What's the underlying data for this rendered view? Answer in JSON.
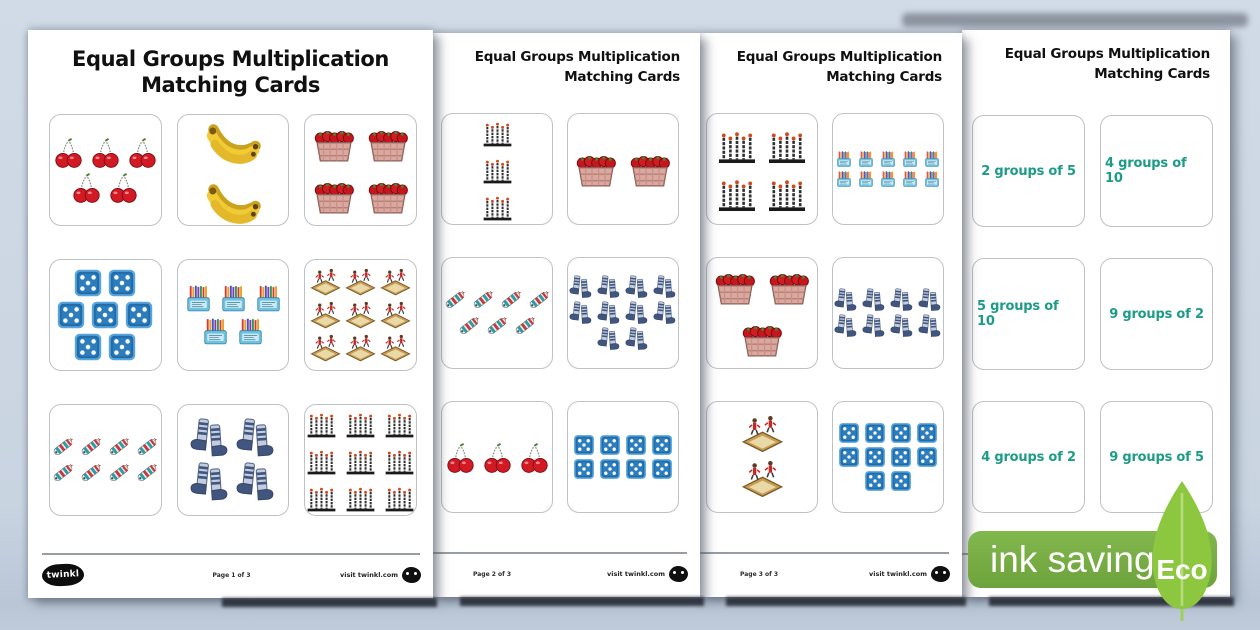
{
  "background_color": "#ccd6e3",
  "card_text_color": "#1d9b86",
  "badge": {
    "label": "ink saving",
    "eco_label": "Eco",
    "pill_color": "#76b043",
    "leaf_color": "#8dc63f"
  },
  "pages": [
    {
      "name": "page-1",
      "title": {
        "line1": "Equal Groups Multiplication",
        "line2": "Matching Cards"
      },
      "footer": {
        "brand": "twinkl",
        "page_label": "Page 1 of 3",
        "site_label": "visit twinkl.com"
      },
      "columns": 3,
      "cards": [
        {
          "type": "cherries",
          "icon": "cherry-pair-icon",
          "groups": 5,
          "rows": [
            3,
            2
          ]
        },
        {
          "type": "bananas",
          "icon": "banana-bunch-icon",
          "groups": 2,
          "rows": [
            1,
            1
          ]
        },
        {
          "type": "strawberries",
          "icon": "strawberry-basket-icon",
          "groups": 4,
          "rows": [
            2,
            2
          ]
        },
        {
          "type": "dice",
          "icon": "die-icon",
          "groups": 7,
          "rows": [
            2,
            3,
            2
          ]
        },
        {
          "type": "pencils",
          "icon": "pencil-pack-icon",
          "groups": 5,
          "rows": [
            3,
            2
          ]
        },
        {
          "type": "sandpit",
          "icon": "sandpit-icon",
          "groups": 9,
          "rows": [
            3,
            3,
            3
          ]
        },
        {
          "type": "crackers",
          "icon": "cracker-icon",
          "groups": 8,
          "rows": [
            4,
            4
          ]
        },
        {
          "type": "socks",
          "icon": "sock-pair-icon",
          "groups": 4,
          "rows": [
            2,
            2
          ]
        },
        {
          "type": "candles",
          "icon": "candle-group-icon",
          "groups": 9,
          "rows": [
            3,
            3,
            3
          ]
        }
      ]
    },
    {
      "name": "page-2",
      "title": {
        "line1": "Equal Groups Multiplication",
        "line2": "Matching Cards"
      },
      "footer": {
        "page_label": "Page 2 of 3",
        "site_label": "visit twinkl.com"
      },
      "columns": 2,
      "cards": [
        {
          "type": "candles",
          "icon": "candle-group-icon",
          "groups": 3,
          "rows": [
            1,
            1,
            1
          ]
        },
        {
          "type": "strawberries",
          "icon": "strawberry-basket-icon",
          "groups": 2,
          "rows": [
            2
          ]
        },
        {
          "type": "crackers",
          "icon": "cracker-icon",
          "groups": 7,
          "rows": [
            4,
            3
          ]
        },
        {
          "type": "socks",
          "icon": "sock-pair-icon",
          "groups": 10,
          "rows": [
            4,
            4,
            2
          ]
        },
        {
          "type": "cherries",
          "icon": "cherry-pair-icon",
          "groups": 3,
          "rows": [
            3
          ]
        },
        {
          "type": "dice",
          "icon": "die-icon",
          "groups": 8,
          "rows": [
            4,
            4
          ]
        }
      ]
    },
    {
      "name": "page-3",
      "title": {
        "line1": "Equal Groups Multiplication",
        "line2": "Matching Cards"
      },
      "footer": {
        "page_label": "Page 3 of 3",
        "site_label": "visit twinkl.com"
      },
      "columns": 2,
      "cards": [
        {
          "type": "candles",
          "icon": "candle-group-icon",
          "groups": 4,
          "rows": [
            2,
            2
          ]
        },
        {
          "type": "pencils",
          "icon": "pencil-pack-icon",
          "groups": 10,
          "rows": [
            5,
            5
          ]
        },
        {
          "type": "strawberries",
          "icon": "strawberry-basket-icon",
          "groups": 3,
          "rows": [
            2,
            1
          ]
        },
        {
          "type": "socks",
          "icon": "sock-pair-icon",
          "groups": 8,
          "rows": [
            4,
            4
          ]
        },
        {
          "type": "sandpit",
          "icon": "sandpit-icon",
          "groups": 2,
          "rows": [
            1,
            1
          ]
        },
        {
          "type": "dice",
          "icon": "die-icon",
          "groups": 10,
          "rows": [
            4,
            4,
            2
          ]
        }
      ]
    },
    {
      "name": "page-4",
      "title": {
        "line1": "Equal Groups Multiplication",
        "line2": "Matching Cards"
      },
      "columns": 2,
      "cards": [
        {
          "type": "text",
          "label": "2 groups of 5"
        },
        {
          "type": "text",
          "label": "4 groups of 10"
        },
        {
          "type": "text",
          "label": "5 groups of 10"
        },
        {
          "type": "text",
          "label": "9 groups of 2"
        },
        {
          "type": "text",
          "label": "4 groups of 2"
        },
        {
          "type": "text",
          "label": "9 groups of 5"
        }
      ]
    }
  ]
}
